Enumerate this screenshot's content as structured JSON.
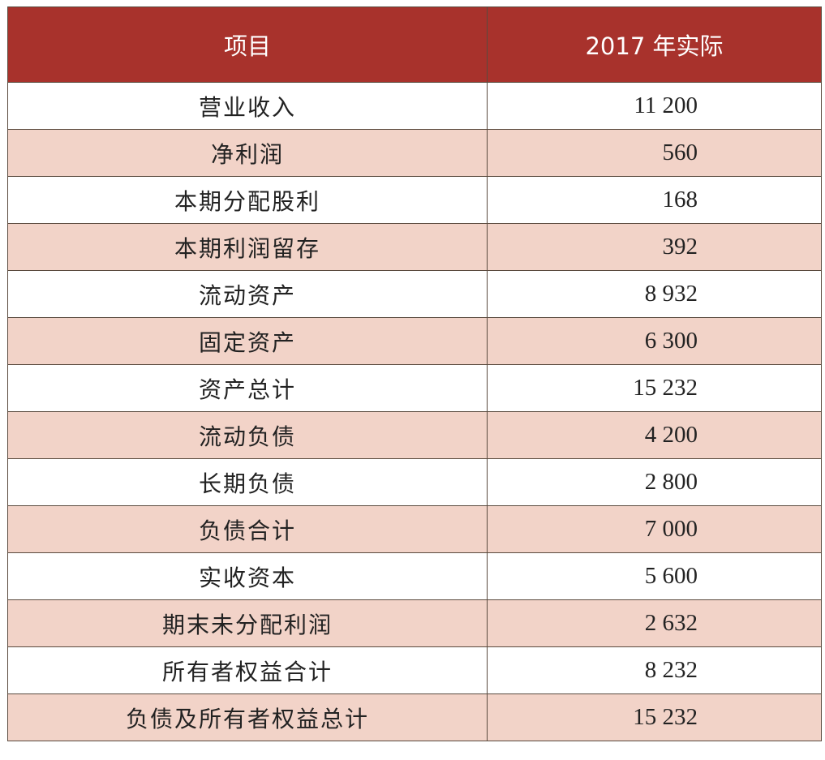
{
  "header": {
    "item_label": "项目",
    "value_label": "2017 年实际"
  },
  "colors": {
    "header_bg": "#a8322c",
    "header_text": "#ffffff",
    "stripe_bg": "#f2d3c8",
    "row_bg": "#ffffff",
    "border": "#5a4a3e"
  },
  "rows": [
    {
      "item": "营业收入",
      "value": "11 200"
    },
    {
      "item": "净利润",
      "value": "560"
    },
    {
      "item": "本期分配股利",
      "value": "168"
    },
    {
      "item": "本期利润留存",
      "value": "392"
    },
    {
      "item": "流动资产",
      "value": "8 932"
    },
    {
      "item": "固定资产",
      "value": "6 300"
    },
    {
      "item": "资产总计",
      "value": "15 232"
    },
    {
      "item": "流动负债",
      "value": "4 200"
    },
    {
      "item": "长期负债",
      "value": "2 800"
    },
    {
      "item": "负债合计",
      "value": "7 000"
    },
    {
      "item": "实收资本",
      "value": "5 600"
    },
    {
      "item": "期末未分配利润",
      "value": "2 632"
    },
    {
      "item": "所有者权益合计",
      "value": "8 232"
    },
    {
      "item": "负债及所有者权益总计",
      "value": "15 232"
    }
  ]
}
